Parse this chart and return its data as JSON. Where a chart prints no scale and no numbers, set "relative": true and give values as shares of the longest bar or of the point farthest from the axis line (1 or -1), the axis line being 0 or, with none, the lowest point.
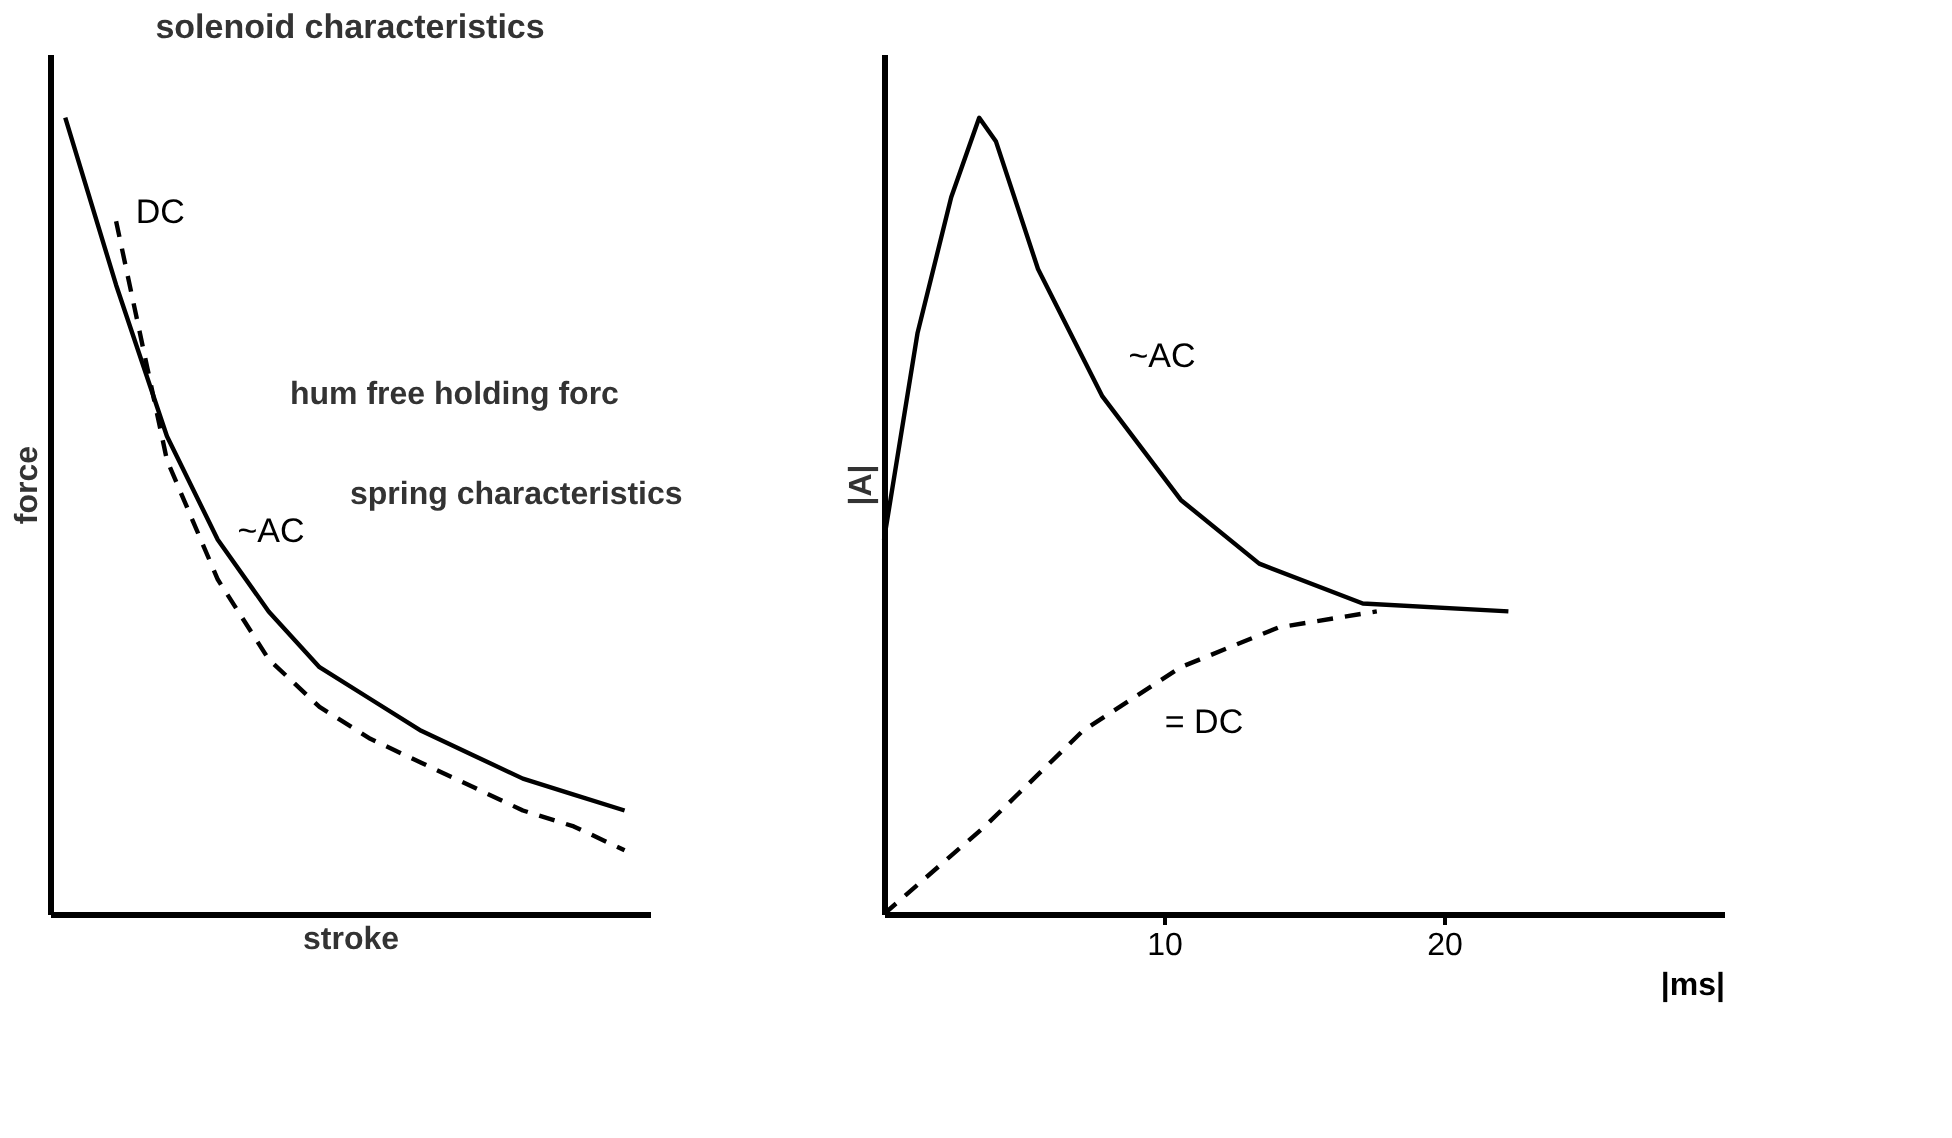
{
  "chart_data": [
    {
      "type": "line",
      "title": "solenoid  characteristics",
      "xlabel": "stroke",
      "ylabel": "force",
      "relative": true,
      "tick_labels": false,
      "legend": false,
      "grid": false,
      "categories": [
        null,
        null,
        null,
        null,
        null,
        null,
        null,
        null,
        null,
        null,
        null,
        null
      ],
      "series": [
        {
          "name": "DC",
          "color": "#000000",
          "line_style": "dashed",
          "values": [
            null,
            0.87,
            0.57,
            0.42,
            0.32,
            0.26,
            0.22,
            0.19,
            0.16,
            0.13,
            0.11,
            0.08
          ]
        },
        {
          "name": "~AC",
          "color": "#000000",
          "line_style": "solid",
          "values": [
            1.0,
            0.79,
            0.6,
            0.47,
            0.38,
            0.31,
            0.27,
            0.23,
            0.2,
            0.17,
            0.15,
            0.13
          ]
        }
      ],
      "annotations": [
        "hum free holding forc",
        "spring characteristics"
      ]
    },
    {
      "type": "line",
      "xlabel": "|ms|",
      "ylabel": "|A|",
      "relative": true,
      "tick_labels": "x",
      "legend": false,
      "grid": false,
      "xlim": [
        0,
        30
      ],
      "xticks": [
        10,
        20
      ],
      "series": [
        {
          "name": "~AC",
          "color": "#000000",
          "line_style": "solid",
          "x": [
            0,
            1.2,
            2.4,
            3.4,
            4.0,
            5.5,
            7.8,
            10.6,
            13.4,
            17.1,
            22.3
          ],
          "values": [
            0.47,
            0.73,
            0.9,
            1.0,
            0.97,
            0.81,
            0.65,
            0.52,
            0.44,
            0.39,
            0.38
          ]
        },
        {
          "name": "= DC",
          "color": "#000000",
          "line_style": "dashed",
          "x": [
            0,
            3.6,
            7.1,
            10.6,
            14.1,
            17.6
          ],
          "values": [
            0,
            0.11,
            0.23,
            0.31,
            0.36,
            0.38
          ]
        }
      ]
    }
  ]
}
